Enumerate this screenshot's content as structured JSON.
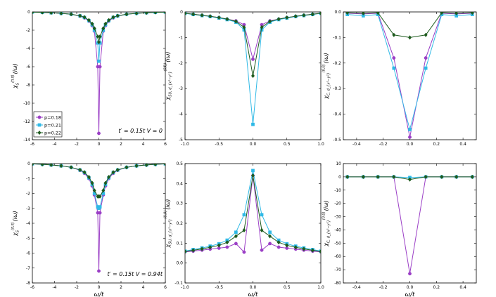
{
  "figure": {
    "xlabel": "ω/t",
    "legend": [
      {
        "label": "p=0.18",
        "color": "#9b3fc6",
        "marker": "circle"
      },
      {
        "label": "p=0.21",
        "color": "#2fb9e6",
        "marker": "square"
      },
      {
        "label": "p=0.22",
        "color": "#1d5a1d",
        "marker": "diamond"
      }
    ]
  },
  "chart_data": [
    {
      "type": "line",
      "panel": "top-left",
      "ylabel": "χ_S^{(π,π)}(iω)",
      "ylabel_main": "χ",
      "ylabel_sub": "S",
      "ylabel_sup": "(π,π)",
      "ylabel_tail": "(iω)",
      "annotation": "t′ = 0.15t V = 0",
      "xlim": [
        -6,
        6
      ],
      "ylim": [
        -14,
        0
      ],
      "xticks": [
        "-6",
        "-4",
        "-2",
        "0",
        "2",
        "4",
        "6"
      ],
      "xtick_values": [
        -6,
        -4,
        -2,
        0,
        2,
        4,
        6
      ],
      "yticks": [
        "0",
        "-2",
        "-4",
        "-6",
        "-8",
        "-10",
        "-12",
        "-14"
      ],
      "ytick_values": [
        0,
        -2,
        -4,
        -6,
        -8,
        -10,
        -12,
        -14
      ],
      "series": [
        {
          "name": "p=0.18",
          "x": [
            -6,
            -5.1,
            -4.3,
            -3.4,
            -2.5,
            -1.7,
            -1.3,
            -0.9,
            -0.6,
            -0.4,
            -0.1,
            0,
            0.1,
            0.4,
            0.6,
            0.9,
            1.3,
            1.7,
            2.5,
            3.4,
            4.3,
            5.1,
            6
          ],
          "y": [
            -0.02,
            -0.05,
            -0.09,
            -0.15,
            -0.25,
            -0.45,
            -0.65,
            -1.0,
            -1.5,
            -2.1,
            -6.0,
            -13.3,
            -6.0,
            -2.1,
            -1.5,
            -1.0,
            -0.65,
            -0.45,
            -0.25,
            -0.15,
            -0.09,
            -0.05,
            -0.02
          ]
        },
        {
          "name": "p=0.21",
          "x": [
            -6,
            -5.1,
            -4.3,
            -3.4,
            -2.5,
            -1.7,
            -1.3,
            -0.9,
            -0.6,
            -0.4,
            -0.1,
            0,
            0.1,
            0.4,
            0.6,
            0.9,
            1.3,
            1.7,
            2.5,
            3.4,
            4.3,
            5.1,
            6
          ],
          "y": [
            -0.02,
            -0.05,
            -0.09,
            -0.15,
            -0.25,
            -0.43,
            -0.6,
            -0.95,
            -1.4,
            -2.0,
            -3.4,
            -5.4,
            -3.4,
            -2.0,
            -1.4,
            -0.95,
            -0.6,
            -0.43,
            -0.25,
            -0.15,
            -0.09,
            -0.05,
            -0.02
          ]
        },
        {
          "name": "p=0.22",
          "x": [
            -6,
            -5.1,
            -4.3,
            -3.4,
            -2.5,
            -1.7,
            -1.3,
            -0.9,
            -0.6,
            -0.4,
            -0.1,
            0,
            0.1,
            0.4,
            0.6,
            0.9,
            1.3,
            1.7,
            2.5,
            3.4,
            4.3,
            5.1,
            6
          ],
          "y": [
            -0.02,
            -0.05,
            -0.09,
            -0.15,
            -0.25,
            -0.42,
            -0.58,
            -0.9,
            -1.3,
            -1.8,
            -2.7,
            -3.3,
            -2.7,
            -1.8,
            -1.3,
            -0.9,
            -0.58,
            -0.42,
            -0.25,
            -0.15,
            -0.09,
            -0.05,
            -0.02
          ]
        }
      ]
    },
    {
      "type": "line",
      "panel": "top-middle",
      "ylabel": "χ_{SU,d_{x²−y²}}^{(0,0)}(iω)",
      "ylabel_main": "χ",
      "ylabel_sub": "SU, d_{x²−y²}",
      "ylabel_sup": "(0,0)",
      "ylabel_tail": "(iω)",
      "xlim": [
        -1,
        1
      ],
      "ylim": [
        -5,
        0
      ],
      "xticks": [
        "-1.0",
        "-0.5",
        "0.0",
        "0.5",
        "1.0"
      ],
      "xtick_values": [
        -1,
        -0.5,
        0,
        0.5,
        1
      ],
      "yticks": [
        "0",
        "-1",
        "-2",
        "-3",
        "-4",
        "-5"
      ],
      "ytick_values": [
        0,
        -1,
        -2,
        -3,
        -4,
        -5
      ],
      "series": [
        {
          "name": "p=0.18",
          "x": [
            -1,
            -0.88,
            -0.75,
            -0.63,
            -0.5,
            -0.38,
            -0.25,
            -0.13,
            0,
            0.13,
            0.25,
            0.38,
            0.5,
            0.63,
            0.75,
            0.88,
            1
          ],
          "y": [
            -0.05,
            -0.09,
            -0.13,
            -0.17,
            -0.22,
            -0.28,
            -0.35,
            -0.5,
            -1.85,
            -0.5,
            -0.35,
            -0.28,
            -0.22,
            -0.17,
            -0.13,
            -0.09,
            -0.05
          ]
        },
        {
          "name": "p=0.21",
          "x": [
            -1,
            -0.88,
            -0.75,
            -0.63,
            -0.5,
            -0.38,
            -0.25,
            -0.13,
            0,
            0.13,
            0.25,
            0.38,
            0.5,
            0.63,
            0.75,
            0.88,
            1
          ],
          "y": [
            -0.06,
            -0.1,
            -0.14,
            -0.18,
            -0.24,
            -0.3,
            -0.4,
            -0.7,
            -4.4,
            -0.7,
            -0.4,
            -0.3,
            -0.24,
            -0.18,
            -0.14,
            -0.1,
            -0.06
          ]
        },
        {
          "name": "p=0.22",
          "x": [
            -1,
            -0.88,
            -0.75,
            -0.63,
            -0.5,
            -0.38,
            -0.25,
            -0.13,
            0,
            0.13,
            0.25,
            0.38,
            0.5,
            0.63,
            0.75,
            0.88,
            1
          ],
          "y": [
            -0.05,
            -0.09,
            -0.13,
            -0.17,
            -0.22,
            -0.28,
            -0.37,
            -0.6,
            -2.5,
            -0.6,
            -0.37,
            -0.28,
            -0.22,
            -0.17,
            -0.13,
            -0.09,
            -0.05
          ]
        }
      ]
    },
    {
      "type": "line",
      "panel": "top-right",
      "ylabel": "χ_{C,d_{x²−y²}}^{(0,0)}(iω)",
      "ylabel_main": "χ",
      "ylabel_sub": "C, d_{x²−y²}",
      "ylabel_sup": "(0,0)",
      "ylabel_tail": "(iω)",
      "xlim": [
        -0.5,
        0.5
      ],
      "ylim": [
        -0.5,
        0
      ],
      "xticks": [
        "-0.4",
        "-0.2",
        "0.0",
        "0.2",
        "0.4"
      ],
      "xtick_values": [
        -0.4,
        -0.2,
        0,
        0.2,
        0.4
      ],
      "yticks": [
        "0.0",
        "-0.1",
        "-0.2",
        "-0.3",
        "-0.4",
        "-0.5"
      ],
      "ytick_values": [
        0,
        -0.1,
        -0.2,
        -0.3,
        -0.4,
        -0.5
      ],
      "series": [
        {
          "name": "p=0.18",
          "x": [
            -0.47,
            -0.35,
            -0.24,
            -0.12,
            0,
            0.12,
            0.24,
            0.35,
            0.47
          ],
          "y": [
            -0.005,
            -0.008,
            -0.005,
            -0.18,
            -0.49,
            -0.18,
            -0.005,
            -0.008,
            -0.005
          ]
        },
        {
          "name": "p=0.21",
          "x": [
            -0.47,
            -0.35,
            -0.24,
            -0.12,
            0,
            0.12,
            0.24,
            0.35,
            0.47
          ],
          "y": [
            -0.01,
            -0.015,
            -0.01,
            -0.22,
            -0.46,
            -0.22,
            -0.01,
            -0.015,
            -0.01
          ]
        },
        {
          "name": "p=0.22",
          "x": [
            -0.47,
            -0.35,
            -0.24,
            -0.12,
            0,
            0.12,
            0.24,
            0.35,
            0.47
          ],
          "y": [
            -0.003,
            -0.005,
            -0.003,
            -0.09,
            -0.1,
            -0.09,
            -0.003,
            -0.005,
            -0.003
          ]
        }
      ]
    },
    {
      "type": "line",
      "panel": "bottom-left",
      "ylabel": "χ_S^{(π,π)}(iω)",
      "ylabel_main": "χ",
      "ylabel_sub": "S",
      "ylabel_sup": "(π,π)",
      "ylabel_tail": "(iω)",
      "annotation": "t′ = 0.15t V = 0.94t",
      "xlim": [
        -6,
        6
      ],
      "ylim": [
        -8,
        0
      ],
      "xticks": [
        "-6",
        "-4",
        "-2",
        "0",
        "2",
        "4",
        "6"
      ],
      "xtick_values": [
        -6,
        -4,
        -2,
        0,
        2,
        4,
        6
      ],
      "yticks": [
        "0",
        "-1",
        "-2",
        "-3",
        "-4",
        "-5",
        "-6",
        "-7",
        "-8"
      ],
      "ytick_values": [
        0,
        -1,
        -2,
        -3,
        -4,
        -5,
        -6,
        -7,
        -8
      ],
      "series": [
        {
          "name": "p=0.18",
          "x": [
            -6,
            -5.1,
            -4.3,
            -3.4,
            -2.5,
            -1.7,
            -1.3,
            -0.9,
            -0.6,
            -0.4,
            -0.1,
            0,
            0.1,
            0.4,
            0.6,
            0.9,
            1.3,
            1.7,
            2.5,
            3.4,
            4.3,
            5.1,
            6
          ],
          "y": [
            -0.02,
            -0.05,
            -0.09,
            -0.15,
            -0.25,
            -0.45,
            -0.65,
            -1.0,
            -1.5,
            -2.1,
            -3.3,
            -7.2,
            -3.3,
            -2.1,
            -1.5,
            -1.0,
            -0.65,
            -0.45,
            -0.25,
            -0.15,
            -0.09,
            -0.05,
            -0.02
          ]
        },
        {
          "name": "p=0.21",
          "x": [
            -6,
            -5.1,
            -4.3,
            -3.4,
            -2.5,
            -1.7,
            -1.3,
            -0.9,
            -0.6,
            -0.4,
            -0.1,
            0,
            0.1,
            0.4,
            0.6,
            0.9,
            1.3,
            1.7,
            2.5,
            3.4,
            4.3,
            5.1,
            6
          ],
          "y": [
            -0.02,
            -0.05,
            -0.09,
            -0.15,
            -0.25,
            -0.43,
            -0.6,
            -0.95,
            -1.4,
            -2.0,
            -2.9,
            -3.0,
            -2.9,
            -2.0,
            -1.4,
            -0.95,
            -0.6,
            -0.43,
            -0.25,
            -0.15,
            -0.09,
            -0.05,
            -0.02
          ]
        },
        {
          "name": "p=0.22",
          "x": [
            -6,
            -5.1,
            -4.3,
            -3.4,
            -2.5,
            -1.7,
            -1.3,
            -0.9,
            -0.6,
            -0.4,
            -0.1,
            0,
            0.1,
            0.4,
            0.6,
            0.9,
            1.3,
            1.7,
            2.5,
            3.4,
            4.3,
            5.1,
            6
          ],
          "y": [
            -0.02,
            -0.05,
            -0.09,
            -0.15,
            -0.25,
            -0.42,
            -0.58,
            -0.9,
            -1.3,
            -1.8,
            -2.2,
            -2.2,
            -2.2,
            -1.8,
            -1.3,
            -0.9,
            -0.58,
            -0.42,
            -0.25,
            -0.15,
            -0.09,
            -0.05,
            -0.02
          ]
        }
      ]
    },
    {
      "type": "line",
      "panel": "bottom-middle",
      "ylabel": "χ_{SU,d_{x²−y²}}^{(0,0)}(iω)",
      "ylabel_main": "χ",
      "ylabel_sub": "SU, d_{x²−y²}",
      "ylabel_sup": "(0,0)",
      "ylabel_tail": "(iω)",
      "xlim": [
        -1,
        1
      ],
      "ylim": [
        -0.1,
        0.5
      ],
      "xticks": [
        "-1.0",
        "-0.5",
        "0.0",
        "0.5",
        "1.0"
      ],
      "xtick_values": [
        -1,
        -0.5,
        0,
        0.5,
        1
      ],
      "yticks": [
        "0.5",
        "0.4",
        "0.3",
        "0.2",
        "0.1",
        "0.0",
        "-0.1"
      ],
      "ytick_values": [
        0.5,
        0.4,
        0.3,
        0.2,
        0.1,
        0,
        -0.1
      ],
      "series": [
        {
          "name": "p=0.18",
          "x": [
            -1,
            -0.88,
            -0.75,
            -0.63,
            -0.5,
            -0.38,
            -0.25,
            -0.13,
            0,
            0.13,
            0.25,
            0.38,
            0.5,
            0.63,
            0.75,
            0.88,
            1
          ],
          "y": [
            0.056,
            0.06,
            0.065,
            0.07,
            0.075,
            0.08,
            0.098,
            0.055,
            0.44,
            0.065,
            0.098,
            0.08,
            0.075,
            0.07,
            0.065,
            0.06,
            0.056
          ]
        },
        {
          "name": "p=0.21",
          "x": [
            -1,
            -0.88,
            -0.75,
            -0.63,
            -0.5,
            -0.38,
            -0.25,
            -0.13,
            0,
            0.13,
            0.25,
            0.38,
            0.5,
            0.63,
            0.75,
            0.88,
            1
          ],
          "y": [
            0.06,
            0.068,
            0.076,
            0.085,
            0.097,
            0.115,
            0.155,
            0.243,
            0.465,
            0.243,
            0.155,
            0.115,
            0.097,
            0.085,
            0.076,
            0.068,
            0.06
          ]
        },
        {
          "name": "p=0.22",
          "x": [
            -1,
            -0.88,
            -0.75,
            -0.63,
            -0.5,
            -0.38,
            -0.25,
            -0.13,
            0,
            0.13,
            0.25,
            0.38,
            0.5,
            0.63,
            0.75,
            0.88,
            1
          ],
          "y": [
            0.058,
            0.064,
            0.071,
            0.079,
            0.089,
            0.104,
            0.135,
            0.165,
            0.44,
            0.165,
            0.135,
            0.104,
            0.089,
            0.079,
            0.071,
            0.064,
            0.058
          ]
        }
      ]
    },
    {
      "type": "line",
      "panel": "bottom-right",
      "ylabel": "χ_{C,d_{x²−y²}}^{(0,0)}(iω)",
      "ylabel_main": "χ",
      "ylabel_sub": "C, d_{x²−y²}",
      "ylabel_sup": "(0,0)",
      "ylabel_tail": "(iω)",
      "xlim": [
        -0.5,
        0.5
      ],
      "ylim": [
        -80,
        10
      ],
      "xticks": [
        "-0.4",
        "-0.2",
        "0.0",
        "0.2",
        "0.4"
      ],
      "xtick_values": [
        -0.4,
        -0.2,
        0,
        0.2,
        0.4
      ],
      "yticks": [
        "10",
        "0",
        "-10",
        "-20",
        "-30",
        "-40",
        "-50",
        "-60",
        "-70",
        "-80"
      ],
      "ytick_values": [
        10,
        0,
        -10,
        -20,
        -30,
        -40,
        -50,
        -60,
        -70,
        -80
      ],
      "series": [
        {
          "name": "p=0.18",
          "x": [
            -0.47,
            -0.35,
            -0.24,
            -0.12,
            0,
            0.12,
            0.24,
            0.35,
            0.47
          ],
          "y": [
            0,
            0,
            0,
            0,
            -73,
            0,
            0,
            0,
            0
          ]
        },
        {
          "name": "p=0.21",
          "x": [
            -0.47,
            -0.35,
            -0.24,
            -0.12,
            0,
            0.12,
            0.24,
            0.35,
            0.47
          ],
          "y": [
            0,
            0,
            0,
            0,
            -0.5,
            0,
            0,
            0,
            0
          ]
        },
        {
          "name": "p=0.22",
          "x": [
            -0.47,
            -0.35,
            -0.24,
            -0.12,
            0,
            0.12,
            0.24,
            0.35,
            0.47
          ],
          "y": [
            0,
            0,
            0,
            0,
            -2,
            0,
            0,
            0,
            0
          ]
        }
      ]
    }
  ]
}
